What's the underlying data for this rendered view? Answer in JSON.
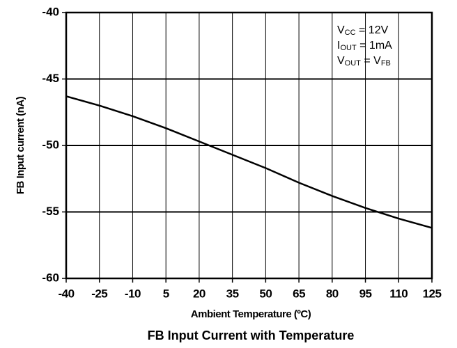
{
  "chart_data": {
    "type": "line",
    "title": "FB Input Current with Temperature",
    "xlabel": "Ambient Temperature (ºC)",
    "ylabel": "FB Input current (nA)",
    "x": [
      -40,
      -25,
      -10,
      5,
      20,
      35,
      50,
      65,
      80,
      95,
      110,
      125
    ],
    "series": [
      {
        "name": "FB Input Current",
        "color": "#000000",
        "values": [
          -46.3,
          -47.0,
          -47.8,
          -48.7,
          -49.7,
          -50.7,
          -51.7,
          -52.8,
          -53.8,
          -54.7,
          -55.5,
          -56.2
        ]
      }
    ],
    "xlim": [
      -40,
      125
    ],
    "xticks": [
      -40,
      -25,
      -10,
      5,
      20,
      35,
      50,
      65,
      80,
      95,
      110,
      125
    ],
    "ylim": [
      -60,
      -40
    ],
    "yticks": [
      -60,
      -55,
      -50,
      -45,
      -40
    ],
    "grid": true,
    "annotations": [
      [
        {
          "text": "V"
        },
        {
          "text": "CC",
          "sub": true
        },
        {
          "text": " = 12V"
        }
      ],
      [
        {
          "text": "I"
        },
        {
          "text": "OUT",
          "sub": true
        },
        {
          "text": " = 1mA"
        }
      ],
      [
        {
          "text": "V"
        },
        {
          "text": "OUT",
          "sub": true
        },
        {
          "text": " = V"
        },
        {
          "text": "FB",
          "sub": true
        }
      ]
    ]
  }
}
